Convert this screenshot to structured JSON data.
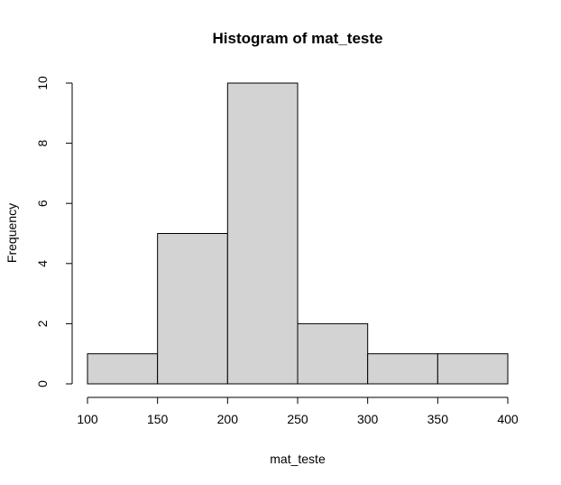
{
  "chart_data": {
    "type": "bar",
    "title": "Histogram of mat_teste",
    "xlabel": "mat_teste",
    "ylabel": "Frequency",
    "bins": [
      {
        "from": 100,
        "to": 150,
        "count": 1
      },
      {
        "from": 150,
        "to": 200,
        "count": 5
      },
      {
        "from": 200,
        "to": 250,
        "count": 10
      },
      {
        "from": 250,
        "to": 300,
        "count": 2
      },
      {
        "from": 300,
        "to": 350,
        "count": 1
      },
      {
        "from": 350,
        "to": 400,
        "count": 1
      }
    ],
    "xlim": [
      100,
      400
    ],
    "ylim": [
      0,
      10
    ],
    "xticks": [
      100,
      150,
      200,
      250,
      300,
      350,
      400
    ],
    "yticks": [
      0,
      2,
      4,
      6,
      8,
      10
    ],
    "bar_color": "#d3d3d3",
    "edge_color": "#000000",
    "grid": false
  }
}
